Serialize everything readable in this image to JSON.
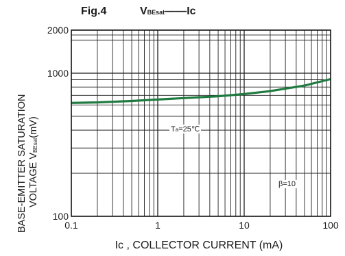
{
  "figure": {
    "fig_label": "Fig.4",
    "title_main": "V",
    "title_sub": "BEsat",
    "title_dash": "——",
    "title_tail": "Ic"
  },
  "chart_data": {
    "type": "line",
    "title": "VBEsat——Ic",
    "xlabel": "Ic , COLLECTOR CURRENT (mA)",
    "ylabel_line1": "BASE-EMITTER SATURATION",
    "ylabel_line2_main": "VOLTAGE V",
    "ylabel_line2_sub": "BEsat",
    "ylabel_line2_tail": "(mV)",
    "x_scale": "log",
    "y_scale": "log",
    "xlim": [
      0.1,
      100
    ],
    "ylim": [
      100,
      2000
    ],
    "x_ticks": [
      0.1,
      1,
      10,
      100
    ],
    "x_tick_labels": [
      "0.1",
      "1",
      "10",
      "100"
    ],
    "y_ticks": [
      100,
      1000,
      2000
    ],
    "y_tick_labels": [
      "100",
      "1000",
      "2000"
    ],
    "grid": true,
    "series": [
      {
        "x": [
          0.1,
          0.2,
          0.5,
          1,
          2,
          5,
          10,
          20,
          50,
          100
        ],
        "y": [
          620,
          625,
          640,
          655,
          670,
          690,
          715,
          750,
          820,
          910
        ],
        "color": "#1f7a3f"
      }
    ],
    "annotations": {
      "temp_main": "T",
      "temp_sub": "a",
      "temp_tail": "=25℃",
      "beta": "β=10"
    }
  }
}
